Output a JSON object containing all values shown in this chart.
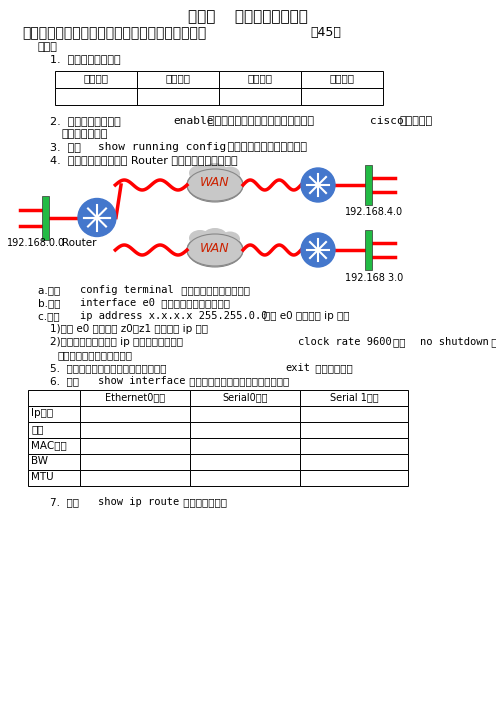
{
  "bg_color": "#ffffff",
  "title": "实验一    路由器的基本配置",
  "subtitle": "依据网络拓扑配置相应的路由器的接口及路由协议",
  "subtitle_suffix": "（45）",
  "table1_headers": [
    "本机地址",
    "网络地址",
    "网络掩码",
    "默认网关"
  ],
  "table2_headers": [
    "",
    "Ethernet0接口",
    "Serial0接口",
    "Serial 1接口"
  ],
  "table2_rows": [
    "Ip地址",
    "掩码",
    "MAC地址",
    "BW",
    "MTU"
  ],
  "network_label_left": "192.168.0.0",
  "network_label_router": "Router",
  "network_label_wan_top": "WAN",
  "network_label_wan_bot": "WAN",
  "network_label_right_top": "192.168.4.0",
  "network_label_right_bot": "192.168 3.0"
}
